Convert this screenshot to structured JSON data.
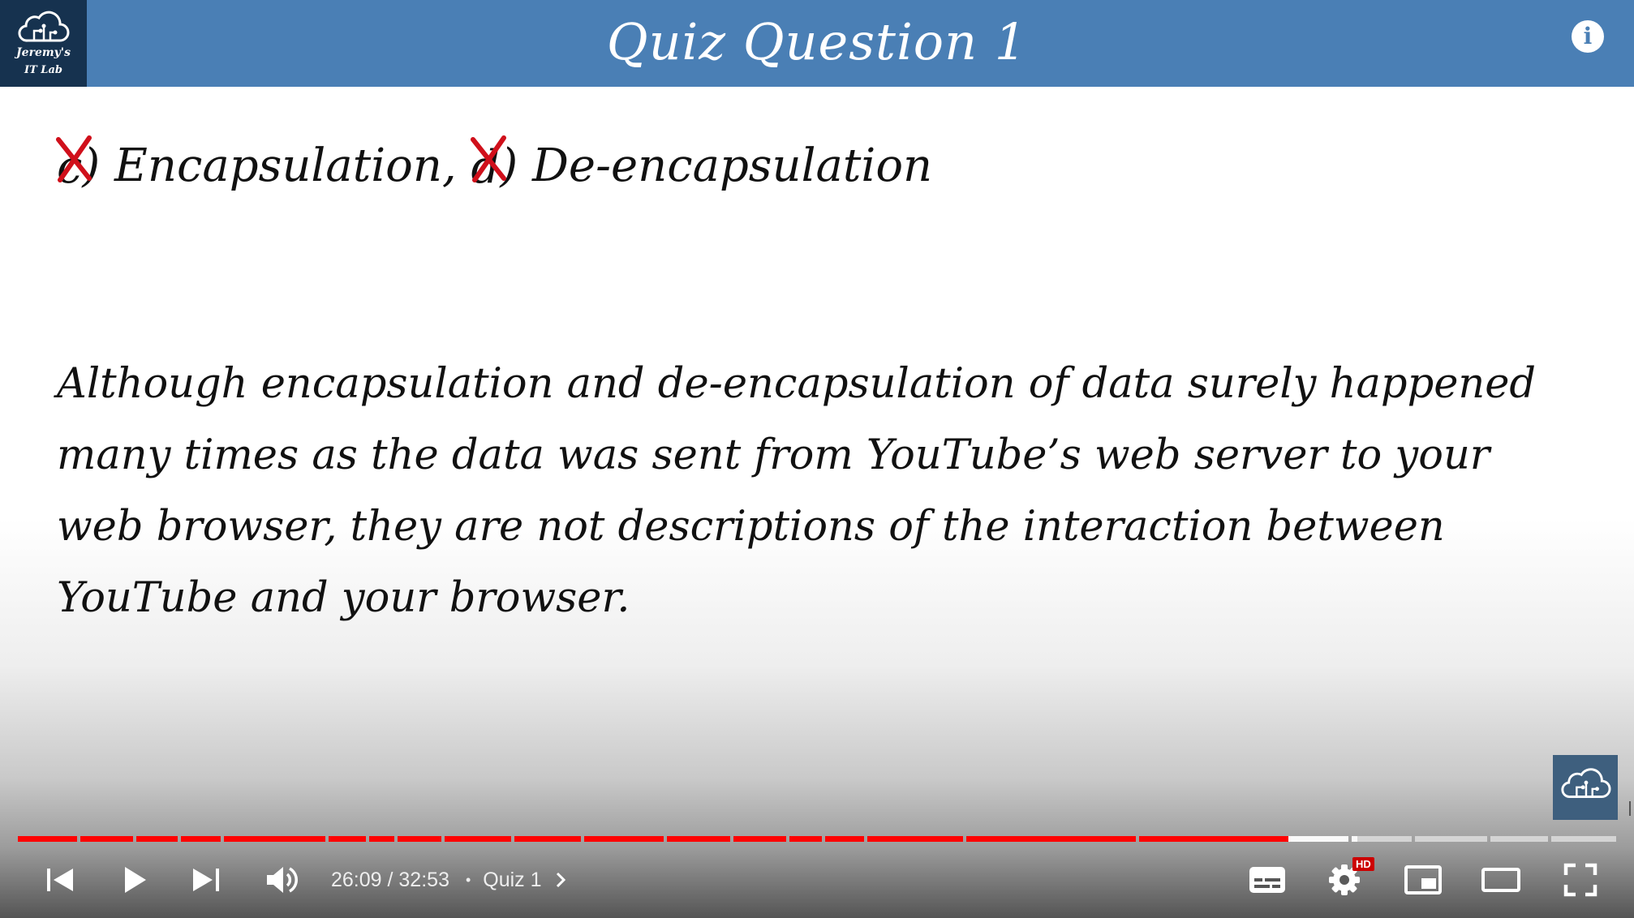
{
  "slide": {
    "logo_line1": "Jeremy's",
    "logo_line2": "IT Lab",
    "title": "Quiz Question 1",
    "info_icon": "i",
    "answer": {
      "first_option_letter": "c",
      "first_option_text": "Encapsulation,",
      "second_option_letter": "d",
      "second_option_text": "De-encapsulation",
      "mark_color": "#d0101b"
    },
    "explanation": "Although encapsulation and de-encapsulation of data surely happened many times as the data was sent from YouTube’s web server to your web browser, they are not descriptions of the interaction between YouTube and your browser."
  },
  "player": {
    "time_current": "26:09",
    "time_separator": " / ",
    "time_total": "32:53",
    "chapter_separator": "•",
    "chapter_title": "Quiz 1",
    "settings_badge": "HD",
    "progress_played_fraction": 0.795,
    "accent_color": "#ff0000",
    "icons": [
      "previous-icon",
      "play-icon",
      "next-icon",
      "volume-icon",
      "chevron-right-icon",
      "subtitles-icon",
      "settings-icon",
      "miniplayer-icon",
      "theater-mode-icon",
      "fullscreen-icon"
    ]
  }
}
